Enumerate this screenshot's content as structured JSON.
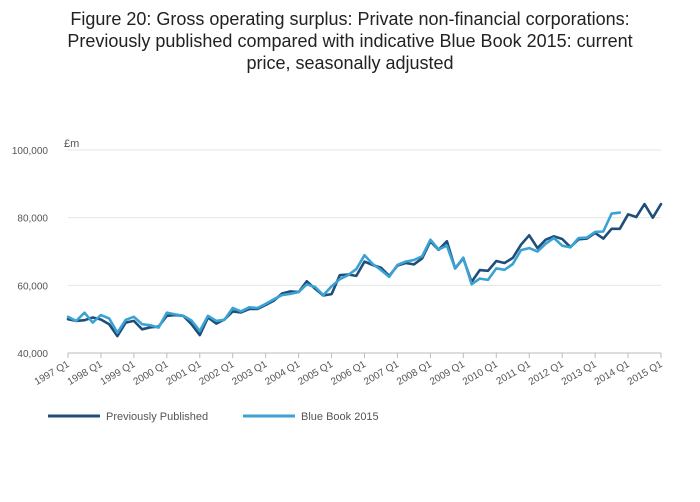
{
  "title_lines": [
    "Figure 20: Gross operating surplus: Private non-financial corporations:",
    "Previously published compared with indicative Blue Book 2015: current",
    "price, seasonally adjusted"
  ],
  "chart_data": {
    "type": "line",
    "title": "Figure 20: Gross operating surplus: Private non-financial corporations: Previously published compared with indicative Blue Book 2015: current price, seasonally adjusted",
    "ylabel": "£m",
    "ylim": [
      40000,
      100000
    ],
    "yticks": [
      40000,
      60000,
      80000,
      100000
    ],
    "ytick_labels": [
      "40,000",
      "60,000",
      "80,000",
      "100,000"
    ],
    "x_start": "1997 Q1",
    "x_tick_labels": [
      "1997 Q1",
      "1998 Q1",
      "1999 Q1",
      "2000 Q1",
      "2001 Q1",
      "2002 Q1",
      "2003 Q1",
      "2004 Q1",
      "2005 Q1",
      "2006 Q1",
      "2007 Q1",
      "2008 Q1",
      "2009 Q1",
      "2010 Q1",
      "2011 Q1",
      "2012 Q1",
      "2013 Q1",
      "2014 Q1",
      "2015 Q1"
    ],
    "grid": true,
    "legend_position": "bottom-left",
    "series": [
      {
        "name": "Previously Published",
        "color": "#1f4e79",
        "values": [
          50000,
          49500,
          49700,
          50500,
          49900,
          48500,
          45000,
          49000,
          49500,
          47000,
          47600,
          47800,
          51000,
          51200,
          51000,
          48500,
          45300,
          50500,
          48700,
          49900,
          52300,
          52000,
          53000,
          53000,
          54200,
          55500,
          57600,
          58200,
          58000,
          61200,
          59000,
          57000,
          57400,
          63000,
          63200,
          62800,
          67000,
          66000,
          65200,
          62800,
          65800,
          66600,
          66200,
          68000,
          73000,
          70500,
          73000,
          65000,
          68000,
          61000,
          64500,
          64300,
          67200,
          66600,
          68100,
          72000,
          74800,
          71000,
          73500,
          74500,
          73700,
          71300,
          73600,
          73800,
          75500,
          73800,
          76700,
          76700,
          81000,
          80200,
          84000,
          80000,
          84000
        ]
      },
      {
        "name": "Blue Book 2015",
        "color": "#3aa3d3",
        "values": [
          50700,
          49500,
          51900,
          49000,
          51200,
          50200,
          46000,
          49800,
          50700,
          48500,
          48200,
          47500,
          51900,
          51400,
          51000,
          49600,
          46500,
          51000,
          49500,
          49800,
          53300,
          52300,
          53500,
          53300,
          54500,
          55900,
          57100,
          57500,
          58000,
          60300,
          59500,
          57100,
          59700,
          61800,
          63000,
          64800,
          68900,
          66300,
          64500,
          62500,
          66000,
          67000,
          67500,
          68600,
          73500,
          70600,
          71700,
          65000,
          68200,
          60300,
          62000,
          61600,
          65000,
          64600,
          66300,
          70400,
          71000,
          70000,
          72300,
          74000,
          71700,
          71200,
          74000,
          74100,
          75800,
          75900,
          81200,
          81500
        ]
      }
    ]
  },
  "legend": [
    {
      "label": "Previously Published",
      "color": "#1f4e79"
    },
    {
      "label": "Blue Book 2015",
      "color": "#3aa3d3"
    }
  ]
}
